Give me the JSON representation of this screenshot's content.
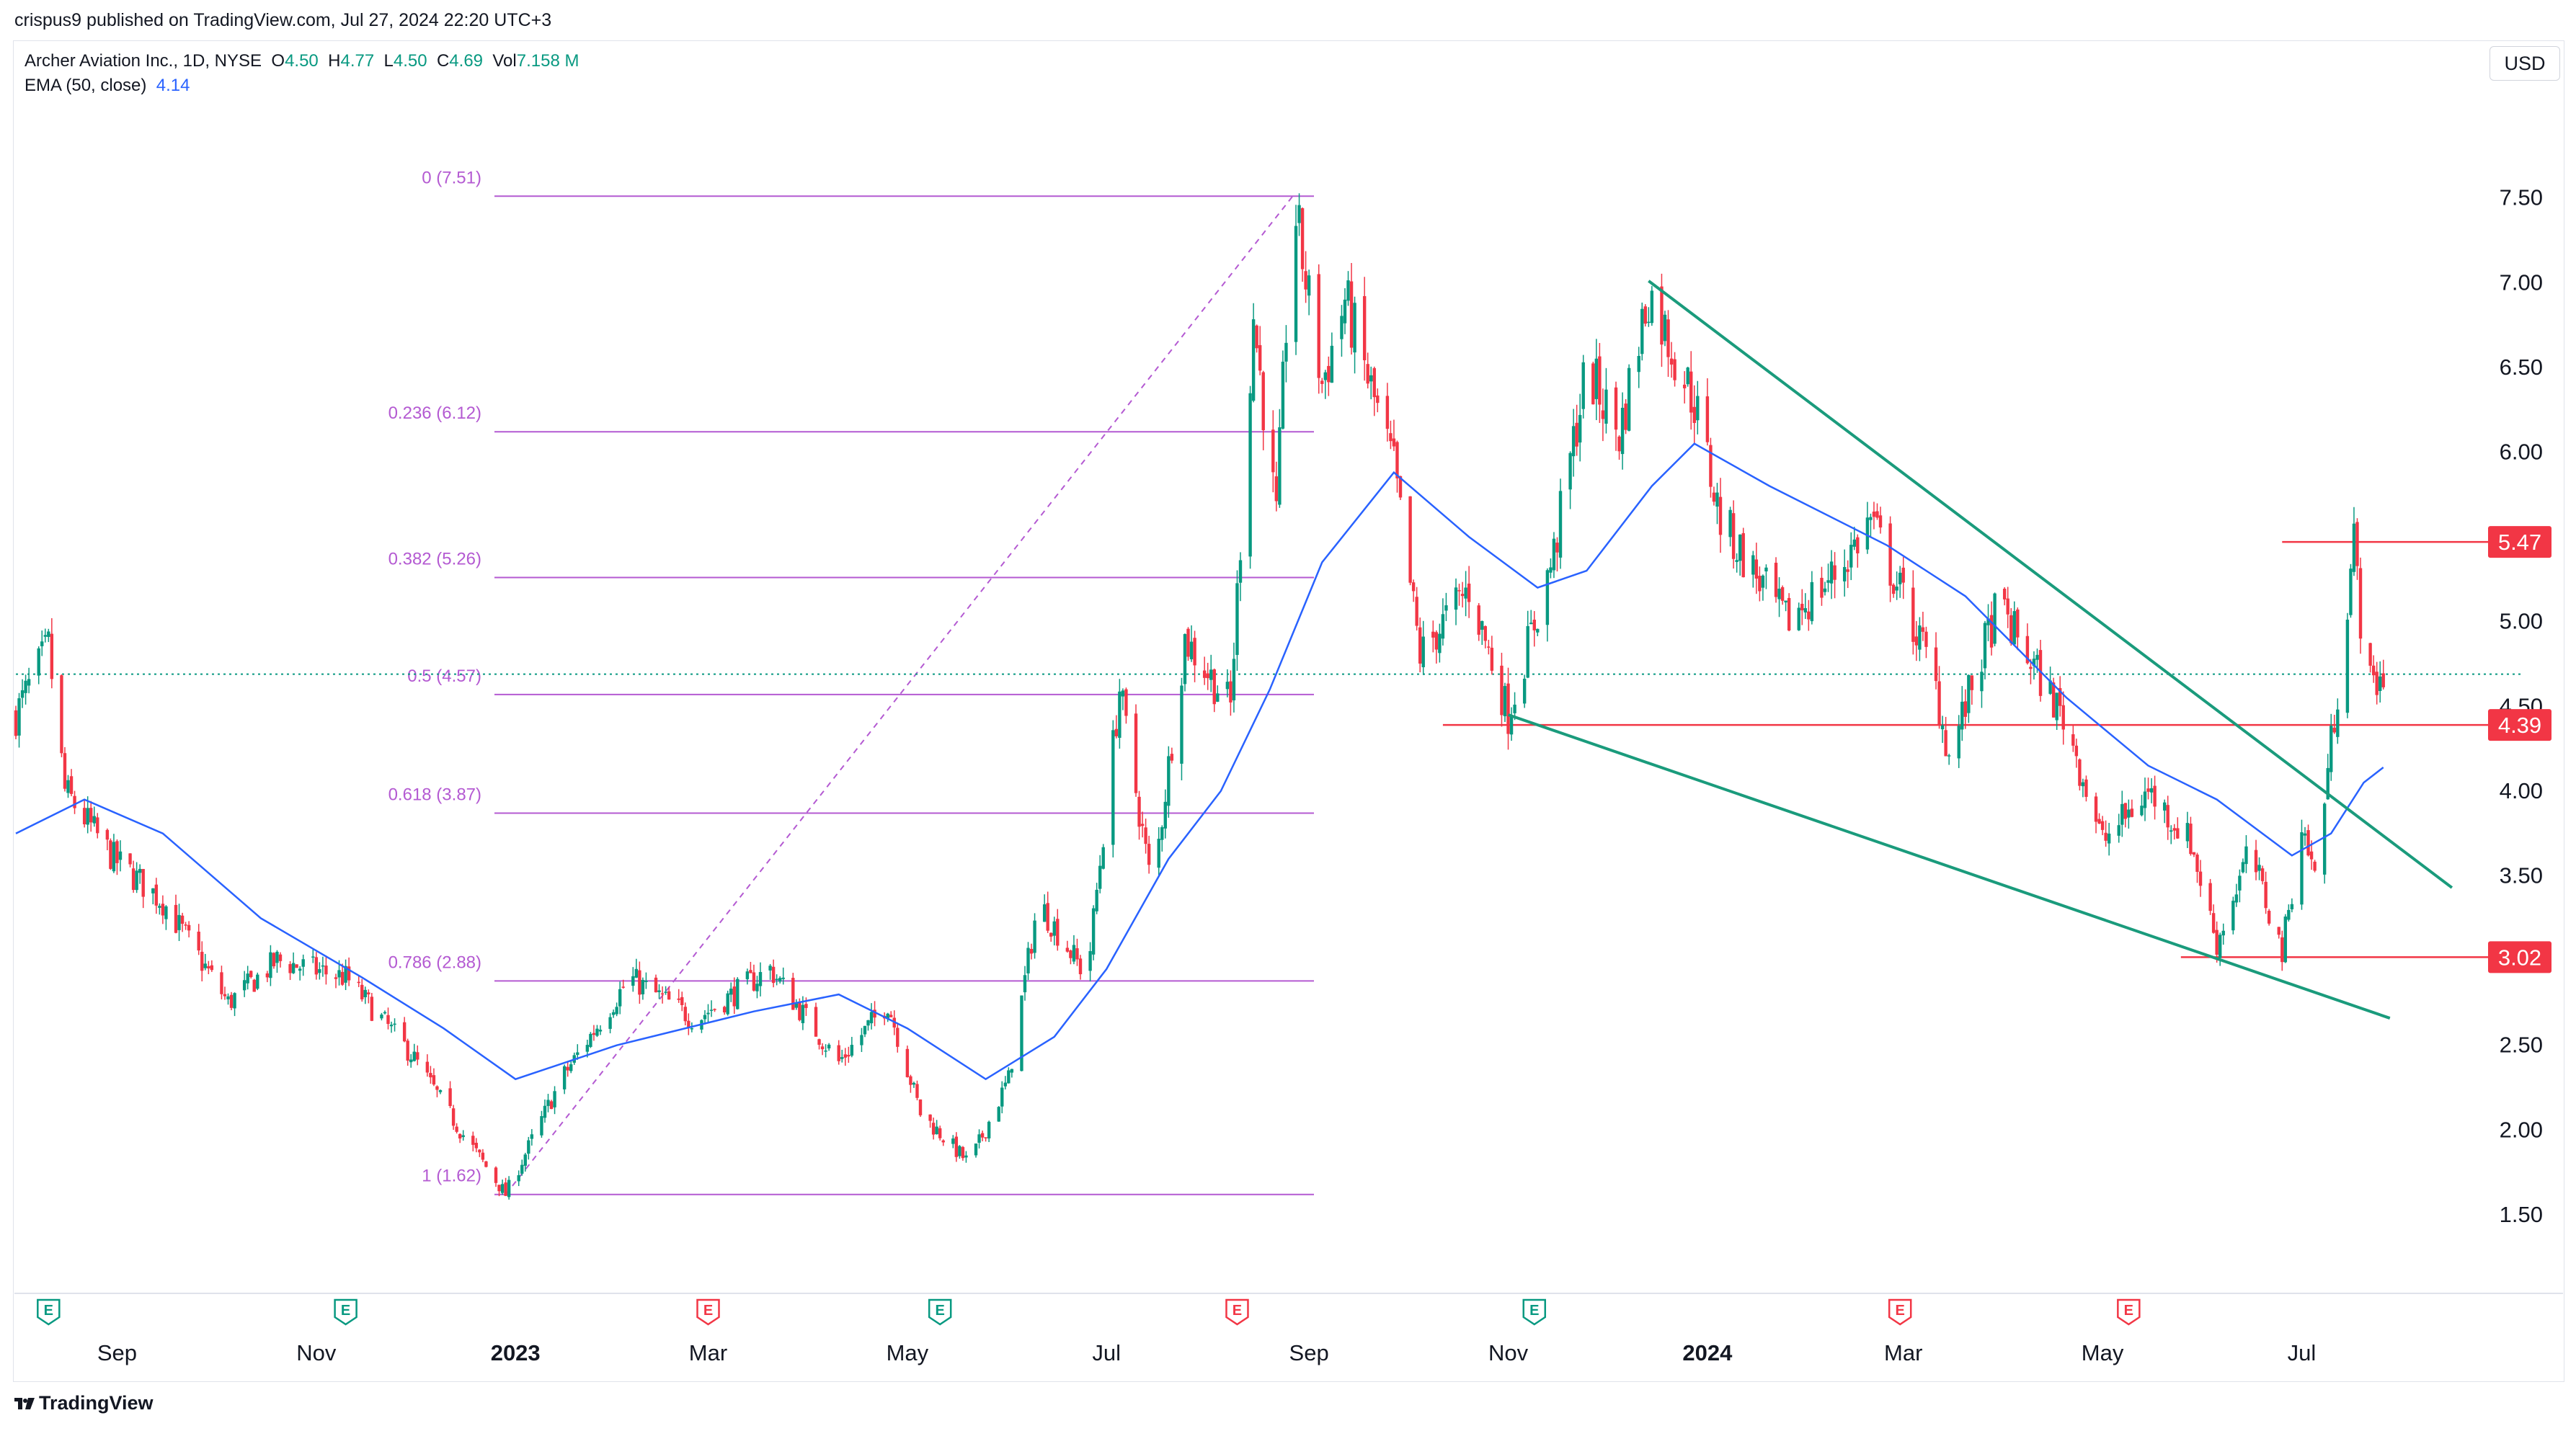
{
  "header": {
    "publisher": "crispus9 published on TradingView.com, Jul 27, 2024 22:20 UTC+3"
  },
  "legend": {
    "symbol": "Archer Aviation Inc., 1D, NYSE",
    "open_label": "O",
    "open": "4.50",
    "high_label": "H",
    "high": "4.77",
    "low_label": "L",
    "low": "4.50",
    "close_label": "C",
    "close": "4.69",
    "volume_label": "Vol",
    "volume": "7.158 M",
    "ema_label": "EMA (50, close)",
    "ema_value": "4.14"
  },
  "currency": "USD",
  "footer": {
    "brand": "TradingView"
  },
  "colors": {
    "up": "#089981",
    "down": "#f23645",
    "ema": "#2962ff",
    "fib": "#b45ad2",
    "wedge": "#1a9b7c",
    "level": "#f23645"
  },
  "chart_data": {
    "type": "candlestick",
    "y_axis": {
      "ticks": [
        1.5,
        2.0,
        2.5,
        3.0,
        3.5,
        4.0,
        4.5,
        5.0,
        5.5,
        6.0,
        6.5,
        7.0,
        7.5
      ],
      "tick_labels": [
        "1.50",
        "2.00",
        "2.50",
        "3.00",
        "3.50",
        "4.00",
        "4.50",
        "5.00",
        "5.50",
        "6.00",
        "6.50",
        "7.00",
        "7.50"
      ],
      "range": [
        1.1,
        8.2
      ]
    },
    "x_axis": {
      "labels": [
        "Sep",
        "Nov",
        "2023",
        "Mar",
        "May",
        "Jul",
        "Sep",
        "Nov",
        "2024",
        "Mar",
        "May",
        "Jul"
      ],
      "bold_labels": [
        "2023",
        "2024"
      ],
      "range": [
        "2022-08-01",
        "2024-08-20"
      ]
    },
    "price_path": [
      {
        "date": "2022-08-01",
        "price": 4.45
      },
      {
        "date": "2022-08-11",
        "price": 4.85
      },
      {
        "date": "2022-08-16",
        "price": 4.0
      },
      {
        "date": "2022-08-31",
        "price": 3.6
      },
      {
        "date": "2022-09-15",
        "price": 3.35
      },
      {
        "date": "2022-10-05",
        "price": 2.75
      },
      {
        "date": "2022-10-20",
        "price": 3.0
      },
      {
        "date": "2022-11-10",
        "price": 2.9
      },
      {
        "date": "2022-11-30",
        "price": 2.45
      },
      {
        "date": "2022-12-15",
        "price": 2.0
      },
      {
        "date": "2022-12-29",
        "price": 1.62
      },
      {
        "date": "2023-01-15",
        "price": 2.3
      },
      {
        "date": "2023-02-05",
        "price": 2.9
      },
      {
        "date": "2023-02-25",
        "price": 2.65
      },
      {
        "date": "2023-03-20",
        "price": 2.95
      },
      {
        "date": "2023-04-10",
        "price": 2.4
      },
      {
        "date": "2023-04-25",
        "price": 2.75
      },
      {
        "date": "2023-05-05",
        "price": 2.1
      },
      {
        "date": "2023-05-20",
        "price": 1.8
      },
      {
        "date": "2023-06-01",
        "price": 2.3
      },
      {
        "date": "2023-06-10",
        "price": 3.35
      },
      {
        "date": "2023-06-25",
        "price": 2.9
      },
      {
        "date": "2023-07-05",
        "price": 4.6
      },
      {
        "date": "2023-07-15",
        "price": 3.4
      },
      {
        "date": "2023-07-25",
        "price": 4.9
      },
      {
        "date": "2023-08-08",
        "price": 4.5
      },
      {
        "date": "2023-08-15",
        "price": 6.8
      },
      {
        "date": "2023-08-22",
        "price": 5.6
      },
      {
        "date": "2023-08-27",
        "price": 7.51
      },
      {
        "date": "2023-09-05",
        "price": 6.4
      },
      {
        "date": "2023-09-12",
        "price": 6.9
      },
      {
        "date": "2023-09-27",
        "price": 5.9
      },
      {
        "date": "2023-10-05",
        "price": 4.8
      },
      {
        "date": "2023-10-20",
        "price": 5.2
      },
      {
        "date": "2023-11-01",
        "price": 4.45
      },
      {
        "date": "2023-11-15",
        "price": 5.4
      },
      {
        "date": "2023-11-25",
        "price": 6.5
      },
      {
        "date": "2023-12-05",
        "price": 6.1
      },
      {
        "date": "2023-12-14",
        "price": 6.95
      },
      {
        "date": "2023-12-28",
        "price": 6.3
      },
      {
        "date": "2024-01-05",
        "price": 5.6
      },
      {
        "date": "2024-01-25",
        "price": 5.0
      },
      {
        "date": "2024-02-10",
        "price": 5.3
      },
      {
        "date": "2024-02-20",
        "price": 5.6
      },
      {
        "date": "2024-03-10",
        "price": 4.7
      },
      {
        "date": "2024-03-15",
        "price": 4.2
      },
      {
        "date": "2024-03-30",
        "price": 5.1
      },
      {
        "date": "2024-04-20",
        "price": 4.4
      },
      {
        "date": "2024-05-01",
        "price": 3.7
      },
      {
        "date": "2024-05-15",
        "price": 4.0
      },
      {
        "date": "2024-05-28",
        "price": 3.7
      },
      {
        "date": "2024-06-05",
        "price": 3.1
      },
      {
        "date": "2024-06-15",
        "price": 3.65
      },
      {
        "date": "2024-06-25",
        "price": 3.05
      },
      {
        "date": "2024-07-01",
        "price": 3.8
      },
      {
        "date": "2024-07-05",
        "price": 3.5
      },
      {
        "date": "2024-07-12",
        "price": 4.6
      },
      {
        "date": "2024-07-17",
        "price": 5.47
      },
      {
        "date": "2024-07-21",
        "price": 4.6
      },
      {
        "date": "2024-07-26",
        "price": 4.69
      }
    ],
    "ema": [
      {
        "date": "2022-08-01",
        "value": 3.75
      },
      {
        "date": "2022-08-22",
        "value": 3.95
      },
      {
        "date": "2022-09-15",
        "value": 3.75
      },
      {
        "date": "2022-10-15",
        "value": 3.25
      },
      {
        "date": "2022-11-15",
        "value": 2.9
      },
      {
        "date": "2022-12-10",
        "value": 2.6
      },
      {
        "date": "2023-01-01",
        "value": 2.3
      },
      {
        "date": "2023-02-01",
        "value": 2.5
      },
      {
        "date": "2023-03-15",
        "value": 2.7
      },
      {
        "date": "2023-04-10",
        "value": 2.8
      },
      {
        "date": "2023-05-01",
        "value": 2.6
      },
      {
        "date": "2023-05-25",
        "value": 2.3
      },
      {
        "date": "2023-06-15",
        "value": 2.55
      },
      {
        "date": "2023-07-01",
        "value": 2.95
      },
      {
        "date": "2023-07-20",
        "value": 3.6
      },
      {
        "date": "2023-08-05",
        "value": 4.0
      },
      {
        "date": "2023-08-20",
        "value": 4.6
      },
      {
        "date": "2023-09-05",
        "value": 5.35
      },
      {
        "date": "2023-09-27",
        "value": 5.88
      },
      {
        "date": "2023-10-20",
        "value": 5.5
      },
      {
        "date": "2023-11-10",
        "value": 5.2
      },
      {
        "date": "2023-11-25",
        "value": 5.3
      },
      {
        "date": "2023-12-15",
        "value": 5.8
      },
      {
        "date": "2023-12-28",
        "value": 6.05
      },
      {
        "date": "2024-01-20",
        "value": 5.8
      },
      {
        "date": "2024-02-25",
        "value": 5.45
      },
      {
        "date": "2024-03-20",
        "value": 5.15
      },
      {
        "date": "2024-04-20",
        "value": 4.55
      },
      {
        "date": "2024-05-15",
        "value": 4.15
      },
      {
        "date": "2024-06-05",
        "value": 3.95
      },
      {
        "date": "2024-06-28",
        "value": 3.62
      },
      {
        "date": "2024-07-10",
        "value": 3.75
      },
      {
        "date": "2024-07-20",
        "value": 4.05
      },
      {
        "date": "2024-07-26",
        "value": 4.14
      }
    ],
    "fibonacci": {
      "start": "2022-12-29",
      "end": "2023-08-27",
      "levels": [
        {
          "label": "0 (7.51)",
          "price": 7.51
        },
        {
          "label": "0.236 (6.12)",
          "price": 6.12
        },
        {
          "label": "0.382 (5.26)",
          "price": 5.26
        },
        {
          "label": "0.5 (4.57)",
          "price": 4.57
        },
        {
          "label": "0.618 (3.87)",
          "price": 3.87
        },
        {
          "label": "0.786 (2.88)",
          "price": 2.88
        },
        {
          "label": "1 (1.62)",
          "price": 1.62
        }
      ]
    },
    "wedge": [
      {
        "x1": "2023-12-14",
        "y1": 7.01,
        "x2": "2024-08-16",
        "y2": 3.43
      },
      {
        "x1": "2023-11-01",
        "y1": 4.45,
        "x2": "2024-07-28",
        "y2": 2.66
      }
    ],
    "levels": [
      {
        "label": "5.47",
        "price": 5.47,
        "from": "2024-06-25"
      },
      {
        "label": "4.39",
        "price": 4.39,
        "from": "2023-10-12"
      },
      {
        "label": "3.02",
        "price": 3.02,
        "from": "2024-05-25"
      }
    ],
    "last_price": 4.69,
    "earnings_markers": [
      {
        "date": "2022-08-11",
        "label": "E",
        "type": "up"
      },
      {
        "date": "2022-11-10",
        "label": "E",
        "type": "up"
      },
      {
        "date": "2023-03-01",
        "label": "E",
        "type": "down"
      },
      {
        "date": "2023-05-11",
        "label": "E",
        "type": "up"
      },
      {
        "date": "2023-08-10",
        "label": "E",
        "type": "down"
      },
      {
        "date": "2023-11-09",
        "label": "E",
        "type": "up"
      },
      {
        "date": "2024-02-29",
        "label": "E",
        "type": "down"
      },
      {
        "date": "2024-05-09",
        "label": "E",
        "type": "down"
      }
    ]
  }
}
